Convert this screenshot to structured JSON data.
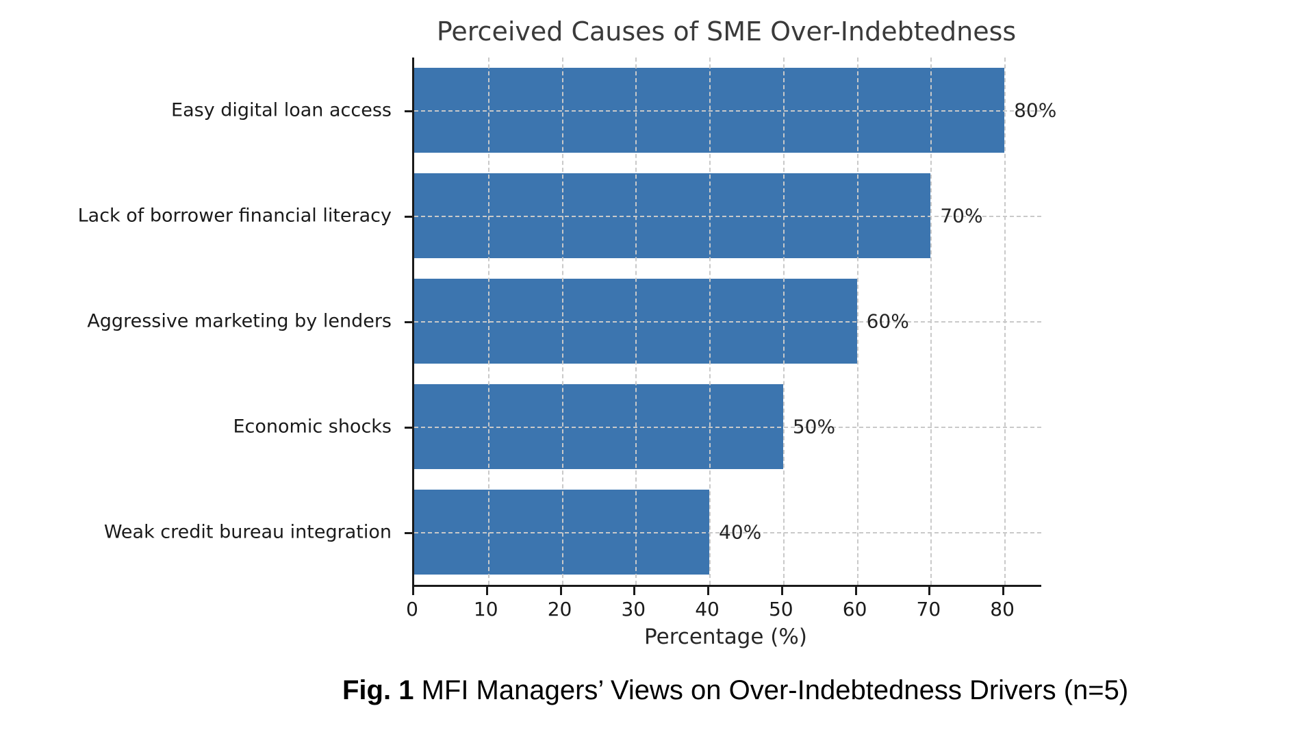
{
  "chart_data": {
    "type": "bar",
    "orientation": "horizontal",
    "title": "Perceived Causes of SME Over-Indebtedness",
    "categories": [
      "Easy digital loan access",
      "Lack of borrower financial literacy",
      "Aggressive marketing by lenders",
      "Economic shocks",
      "Weak credit bureau integration"
    ],
    "values": [
      80,
      70,
      60,
      50,
      40
    ],
    "value_labels": [
      "80%",
      "70%",
      "60%",
      "50%",
      "40%"
    ],
    "xlabel": "Percentage (%)",
    "xticks": [
      0,
      10,
      20,
      30,
      40,
      50,
      60,
      70,
      80
    ],
    "xlim": [
      0,
      85
    ],
    "grid": "dashed, vertical at each x tick and horizontal at each bar center",
    "legend_position": "none",
    "bar_color": "#3c75af",
    "grid_color": "#c9c9c9",
    "axis_color": "#1a1a1a",
    "text_color": "#262626",
    "title_color": "#3a3a3a"
  },
  "caption": {
    "prefix": "Fig. 1",
    "text": " MFI Managers’ Views on Over-Indebtedness Drivers (n=5)"
  }
}
